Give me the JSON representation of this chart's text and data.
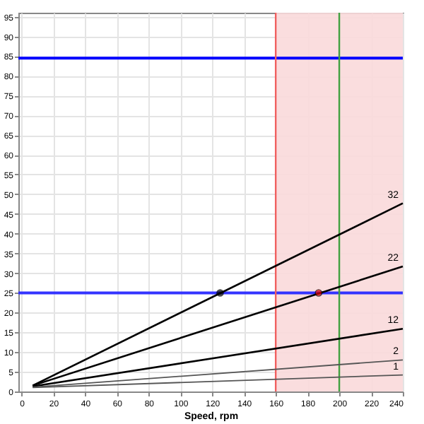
{
  "chart_data": {
    "type": "line",
    "xlabel": "Speed, rpm",
    "xlim": [
      -2,
      240
    ],
    "xticks": [
      0,
      20,
      40,
      60,
      80,
      100,
      120,
      140,
      160,
      180,
      200,
      220,
      240
    ],
    "ylim": [
      0,
      96
    ],
    "yticks": [
      0,
      5,
      10,
      15,
      20,
      25,
      30,
      35,
      40,
      45,
      50,
      55,
      60,
      65,
      70,
      75,
      80,
      85,
      90,
      95
    ],
    "grid": true,
    "legend": false,
    "marker": "none",
    "line_style": "solid",
    "series": [
      {
        "name": "32",
        "color": "#000000",
        "x": [
          7,
          240
        ],
        "values": [
          1.5,
          47.7
        ]
      },
      {
        "name": "22",
        "color": "#000000",
        "x": [
          7,
          240
        ],
        "values": [
          1.5,
          31.7
        ]
      },
      {
        "name": "12",
        "color": "#000000",
        "x": [
          7,
          240
        ],
        "values": [
          1.3,
          15.9
        ]
      },
      {
        "name": "2",
        "color": "#555555",
        "x": [
          7,
          240
        ],
        "values": [
          1.1,
          8.0
        ]
      },
      {
        "name": "1",
        "color": "#555555",
        "x": [
          7,
          240
        ],
        "values": [
          1.0,
          4.2
        ]
      },
      {
        "type": "scatter",
        "marker": "circle",
        "x": [
          125,
          187
        ],
        "values": [
          25,
          25
        ],
        "colors": [
          "#000000",
          "#e00000"
        ]
      }
    ],
    "ref_lines": [
      {
        "axis": "y",
        "value": 84.5,
        "color": "#0000ff"
      },
      {
        "axis": "y",
        "value": 25,
        "color": "#3333ff"
      },
      {
        "axis": "x",
        "value": 160,
        "color": "#f06060"
      },
      {
        "axis": "x",
        "value": 200,
        "color": "#40a040"
      }
    ],
    "bands": [
      {
        "axis": "x",
        "from": 160,
        "to": 240,
        "color": "#f9d9da"
      }
    ]
  }
}
